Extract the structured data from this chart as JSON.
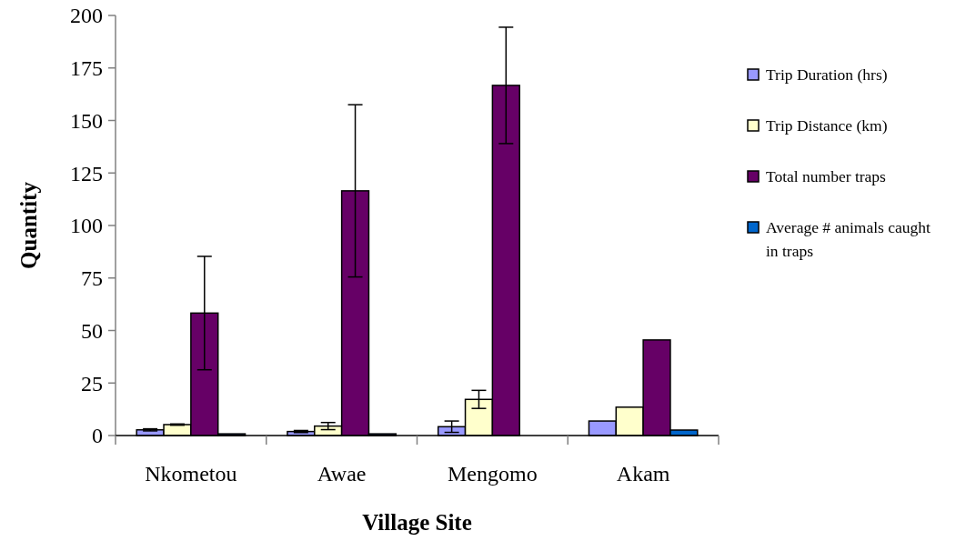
{
  "chart_data": {
    "type": "bar",
    "xlabel": "Village Site",
    "ylabel": "Quantity",
    "categories": [
      "Nkometou",
      "Awae",
      "Mengomo",
      "Akam"
    ],
    "ylim": [
      0,
      200
    ],
    "yticks": [
      0,
      25,
      50,
      75,
      100,
      125,
      150,
      175,
      200
    ],
    "legend": "right",
    "grid": false,
    "series": [
      {
        "name": "Trip Duration (hrs)",
        "color": "#9999ff",
        "values": [
          2.7,
          1.9,
          4.2,
          6.9
        ],
        "errors": [
          0.5,
          0.5,
          2.7,
          null
        ]
      },
      {
        "name": "Trip Distance (km)",
        "color": "#ffffcc",
        "values": [
          5.2,
          4.5,
          17.2,
          13.5
        ],
        "errors": [
          0.3,
          1.7,
          4.3,
          null
        ]
      },
      {
        "name": "Total number traps",
        "color": "#660066",
        "values": [
          58.3,
          116.5,
          166.7,
          45.5
        ],
        "errors": [
          27,
          41,
          27.7,
          null
        ]
      },
      {
        "name": "Average # animals caught in traps",
        "color": "#0066cc",
        "values": [
          0.8,
          0.8,
          null,
          2.6
        ]
      }
    ]
  }
}
